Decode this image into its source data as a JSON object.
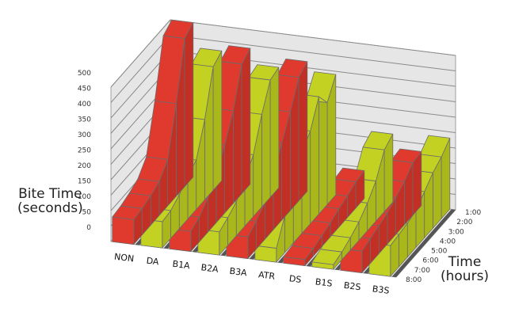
{
  "chart_data": {
    "type": "area",
    "subtype": "3d-ribbon",
    "title": "",
    "ylabel": "Bite Time (seconds)",
    "zlabel": "Time (hours)",
    "ylim": [
      0,
      500
    ],
    "y_ticks": [
      "0",
      "50",
      "100",
      "150",
      "200",
      "250",
      "300",
      "350",
      "400",
      "450",
      "500"
    ],
    "categories": [
      "NON",
      "DA",
      "B1A",
      "B2A",
      "B3A",
      "ATR",
      "DS",
      "B1S",
      "B2S",
      "B3S"
    ],
    "time_ticks": [
      "1:00",
      "2:00",
      "3:00",
      "4:00",
      "5:00",
      "6:00",
      "7:00",
      "8:00"
    ],
    "grid": true,
    "colors": {
      "red": "#E03A2E",
      "green": "#C2D122",
      "wall": "#E6E6E6",
      "floor": "#555555",
      "grid": "#8a8a8a"
    },
    "series": [
      {
        "name": "NON",
        "color": "red",
        "values": [
          500,
          480,
          300,
          150,
          110,
          95,
          85,
          80
        ]
      },
      {
        "name": "DA",
        "color": "green",
        "values": [
          420,
          400,
          260,
          160,
          140,
          110,
          90,
          85
        ]
      },
      {
        "name": "B1A",
        "color": "red",
        "values": [
          440,
          420,
          300,
          220,
          160,
          110,
          80,
          65
        ]
      },
      {
        "name": "B2A",
        "color": "green",
        "values": [
          390,
          380,
          300,
          200,
          150,
          110,
          90,
          75
        ]
      },
      {
        "name": "B3A",
        "color": "red",
        "values": [
          420,
          400,
          320,
          250,
          180,
          120,
          90,
          70
        ]
      },
      {
        "name": "ATR",
        "color": "green",
        "values": [
          390,
          330,
          380,
          300,
          260,
          200,
          120,
          45
        ]
      },
      {
        "name": "DS",
        "color": "red",
        "values": [
          90,
          85,
          70,
          60,
          45,
          35,
          25,
          20
        ]
      },
      {
        "name": "B1S",
        "color": "green",
        "values": [
          220,
          200,
          130,
          90,
          60,
          40,
          25,
          15
        ]
      },
      {
        "name": "B2S",
        "color": "red",
        "values": [
          175,
          170,
          140,
          120,
          100,
          90,
          80,
          70
        ]
      },
      {
        "name": "B3S",
        "color": "green",
        "values": [
          230,
          200,
          180,
          150,
          120,
          110,
          105,
          100
        ]
      }
    ]
  },
  "labels": {
    "ylabel_line1": "Bite Time",
    "ylabel_line2": "(seconds)",
    "zlabel_line1": "Time",
    "zlabel_line2": "(hours)"
  }
}
